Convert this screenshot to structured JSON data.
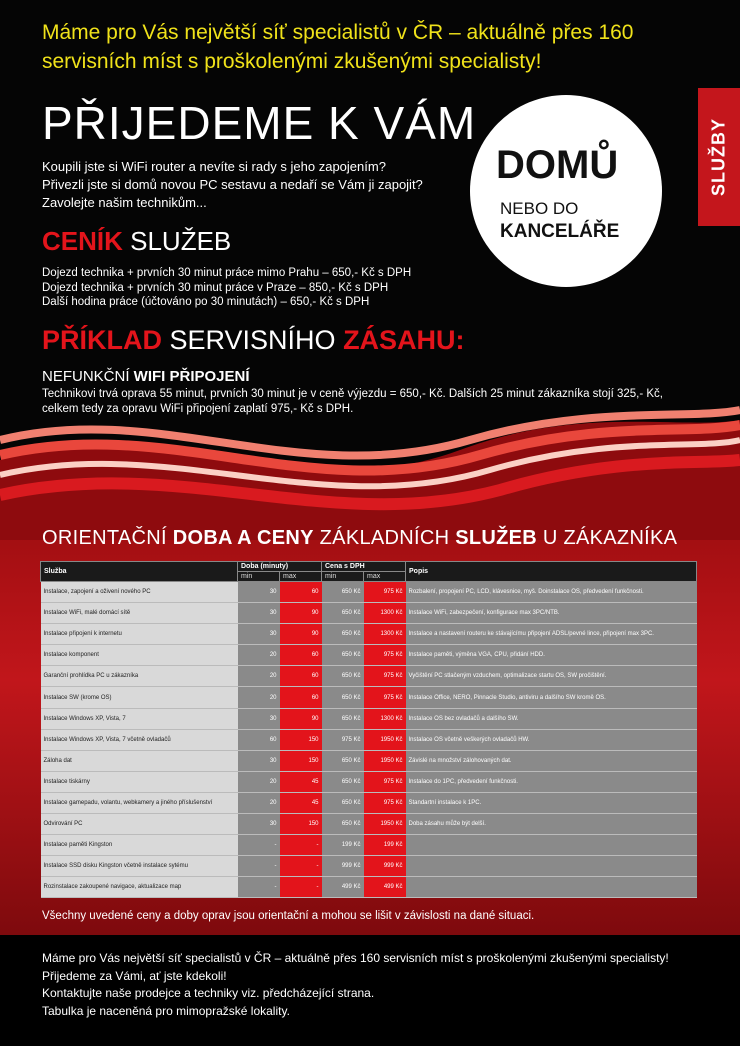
{
  "headline": "Máme pro Vás největší síť specialistů v ČR – aktuálně přes 160 servisních míst s proškolenými zkušenými specialisty!",
  "title": "PŘIJEDEME K VÁM",
  "intro": [
    "Koupili jste si WiFi router a nevíte si rady s jeho zapojením?",
    "Přivezli jste si domů novou PC sestavu a nedaří se Vám ji zapojit?",
    "Zavolejte našim technikům..."
  ],
  "circle": {
    "line1": "DOMŮ",
    "line2": "NEBO DO",
    "line3": "KANCELÁŘE"
  },
  "side_tab": "SLUŽBY",
  "pricing": {
    "title_bold": "CENÍK",
    "title_rest": " SLUŽEB",
    "lines": [
      "Dojezd technika + prvních 30 minut práce mimo Prahu – 650,- Kč s DPH",
      "Dojezd technika + prvních 30 minut práce v Praze – 850,- Kč s DPH",
      "Další hodina práce (účtováno po 30 minutách) – 650,- Kč s DPH"
    ]
  },
  "example": {
    "t1": "PŘÍKLAD",
    "t2": " SERVISNÍHO ",
    "t3": "ZÁSAHU:",
    "sub_normal": "NEFUNKČNÍ ",
    "sub_bold": "WIFI PŘIPOJENÍ",
    "text": "Technikovi trvá oprava 55 minut, prvních 30 minut je v ceně výjezdu = 650,- Kč. Dalších 25 minut zákazníka stojí 325,- Kč, celkem tedy za opravu WiFi připojení zaplatí 975,- Kč s DPH."
  },
  "table_title": {
    "a": "ORIENTAČNÍ ",
    "b": "DOBA A CENY",
    "c": " ZÁKLADNÍCH ",
    "d": "SLUŽEB",
    "e": " U ZÁKAZNÍKA"
  },
  "table": {
    "headers": {
      "service": "Služba",
      "time": "Doba (minuty)",
      "price": "Cena s DPH",
      "desc": "Popis",
      "min": "min",
      "max": "max"
    },
    "rows": [
      [
        "Instalace, zapojení a oživení nového PC",
        "30",
        "60",
        "650 Kč",
        "975 Kč",
        "Rozbalení, propojení PC, LCD, klávesnice, myš. Doinstalace OS, předvedení funkčnosti."
      ],
      [
        "Instalace WiFi, malé domácí sítě",
        "30",
        "90",
        "650 Kč",
        "1300 Kč",
        "Instalace WiFi, zabezpečení, konfigurace max 3PC/NTB."
      ],
      [
        "Instalace připojení k internetu",
        "30",
        "90",
        "650 Kč",
        "1300 Kč",
        "Instalace a nastavení routeru ke stávajícímu připojení ADSL/pevné lince, připojení max 3PC."
      ],
      [
        "Instalace komponent",
        "20",
        "60",
        "650 Kč",
        "975 Kč",
        "Instalace paměti, výměna VGA, CPU, přidání HDD."
      ],
      [
        "Garanční prohlídka PC u zákazníka",
        "20",
        "60",
        "650 Kč",
        "975 Kč",
        "Vyčištění PC stlačeným vzduchem, optimalizace startu OS, SW pročištění."
      ],
      [
        "Instalace SW (krome OS)",
        "20",
        "60",
        "650 Kč",
        "975 Kč",
        "Instalace Office, NERO, Pinnacle Studio, antiviru a dalšího SW kromě OS."
      ],
      [
        "Instalace Windows XP, Vista, 7",
        "30",
        "90",
        "650 Kč",
        "1300 Kč",
        "Instalace OS bez ovladačů a dalšího SW."
      ],
      [
        "Instalace Windows XP, Vista, 7 včetně ovladačů",
        "60",
        "150",
        "975 Kč",
        "1950 Kč",
        "Instalace OS včetně veškerých ovladačů HW."
      ],
      [
        "Záloha dat",
        "30",
        "150",
        "650 Kč",
        "1950 Kč",
        "Závislé na množství zálohovaných dat."
      ],
      [
        "Instalace tiskárny",
        "20",
        "45",
        "650 Kč",
        "975 Kč",
        "Instalace do 1PC, předvedení funkčnosti."
      ],
      [
        "Instalace gamepadu, volantu, webkamery a jiného příslušenství",
        "20",
        "45",
        "650 Kč",
        "975 Kč",
        "Standartní instalace k 1PC."
      ],
      [
        "Odvirování PC",
        "30",
        "150",
        "650 Kč",
        "1950 Kč",
        "Doba zásahu může být delší."
      ],
      [
        "Instalace paměti Kingston",
        "-",
        "-",
        "199 Kč",
        "199 Kč",
        ""
      ],
      [
        "Instalace SSD disku Kingston včetně instalace sytému",
        "-",
        "-",
        "999 Kč",
        "999 Kč",
        ""
      ],
      [
        "Rozinstalace zakoupené navigace, aktualizace map",
        "-",
        "-",
        "499 Kč",
        "499 Kč",
        ""
      ]
    ]
  },
  "note": "Všechny uvedené ceny a doby oprav jsou orientační a mohou se lišit v závislosti na dané situaci.",
  "footer": [
    "Máme pro Vás největší síť specialistů v ČR – aktuálně přes 160 servisních míst s proškolenými zkušenými specialisty!",
    "Přijedeme za Vámi, ať jste kdekoli!",
    "Kontaktujte naše prodejce a techniky viz. předcházející strana.",
    "Tabulka je naceněná pro mimopražské lokality."
  ],
  "colors": {
    "accent_red": "#e3141b",
    "headline_yellow": "#f0e21a"
  }
}
